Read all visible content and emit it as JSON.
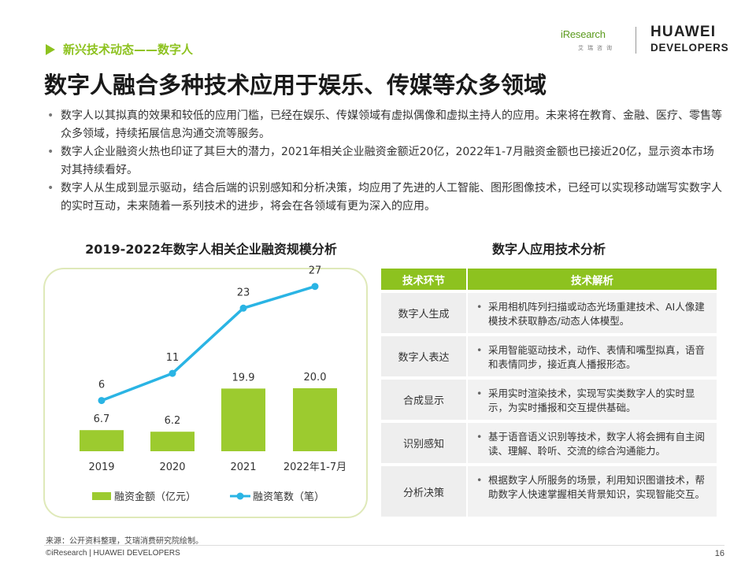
{
  "header": {
    "breadcrumb": "新兴技术动态——数字人",
    "logo_iresearch": "iResearch",
    "logo_iresearch_sub": "艾瑞咨询",
    "logo_huawei_line1": "HUAWEI",
    "logo_huawei_line2": "DEVELOPERS"
  },
  "title": "数字人融合多种技术应用于娱乐、传媒等众多领域",
  "bullets": [
    "数字人以其拟真的效果和较低的应用门槛，已经在娱乐、传媒领域有虚拟偶像和虚拟主持人的应用。未来将在教育、金融、医疗、零售等众多领域，持续拓展信息沟通交流等服务。",
    "数字人企业融资火热也印证了其巨大的潜力，2021年相关企业融资金额近20亿，2022年1-7月融资金额也已接近20亿，显示资本市场对其持续看好。",
    "数字人从生成到显示驱动，结合后端的识别感知和分析决策，均应用了先进的人工智能、图形图像技术，已经可以实现移动端写实数字人的实时互动，未来随着一系列技术的进步，将会在各领域有更为深入的应用。"
  ],
  "chart_data": {
    "type": "bar",
    "title": "2019-2022年数字人相关企业融资规模分析",
    "categories": [
      "2019",
      "2020",
      "2021",
      "2022年1-7月"
    ],
    "series": [
      {
        "name": "融资金额（亿元）",
        "type": "bar",
        "values": [
          6.7,
          6.2,
          19.9,
          20.0
        ],
        "labels": [
          "6.7",
          "6.2",
          "19.9",
          "20.0"
        ],
        "color": "#9ccb2f"
      },
      {
        "name": "融资笔数（笔）",
        "type": "line",
        "values": [
          6,
          11,
          23,
          27
        ],
        "labels": [
          "6",
          "11",
          "23",
          "27"
        ],
        "color": "#2ab4e4"
      }
    ],
    "grid": false,
    "legend": "bottom"
  },
  "table": {
    "title": "数字人应用技术分析",
    "headers": [
      "技术环节",
      "技术解析"
    ],
    "rows": [
      {
        "stage": "数字人生成",
        "desc": "采用相机阵列扫描或动态光场重建技术、AI人像建模技术获取静态/动态人体模型。"
      },
      {
        "stage": "数字人表达",
        "desc": "采用智能驱动技术，动作、表情和嘴型拟真，语音和表情同步，接近真人播报形态。"
      },
      {
        "stage": "合成显示",
        "desc": "采用实时渲染技术，实现写实类数字人的实时显示，为实时播报和交互提供基础。"
      },
      {
        "stage": "识别感知",
        "desc": "基于语音语义识别等技术，数字人将会拥有自主阅读、理解、聆听、交流的综合沟通能力。"
      },
      {
        "stage": "分析决策",
        "desc": "根据数字人所服务的场景，利用知识图谱技术，帮助数字人快速掌握相关背景知识，实现智能交互。"
      }
    ]
  },
  "footer": {
    "source": "来源：公开资料整理，艾瑞消费研究院绘制。",
    "copyright": "©iResearch | HUAWEI DEVELOPERS",
    "page_number": "16"
  },
  "colors": {
    "accent_green": "#8dc21f",
    "bar_green": "#9ccb2f",
    "line_blue": "#2ab4e4"
  }
}
